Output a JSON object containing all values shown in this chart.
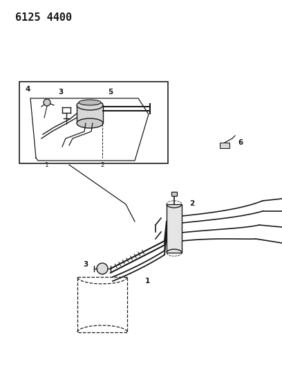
{
  "title": "6125 4400",
  "bg_color": "#ffffff",
  "line_color": "#1a1a1a",
  "label_color": "#1a1a1a",
  "label_fontsize": 7.5,
  "title_fontsize": 11,
  "fig_w": 4.08,
  "fig_h": 5.33,
  "dpi": 100
}
